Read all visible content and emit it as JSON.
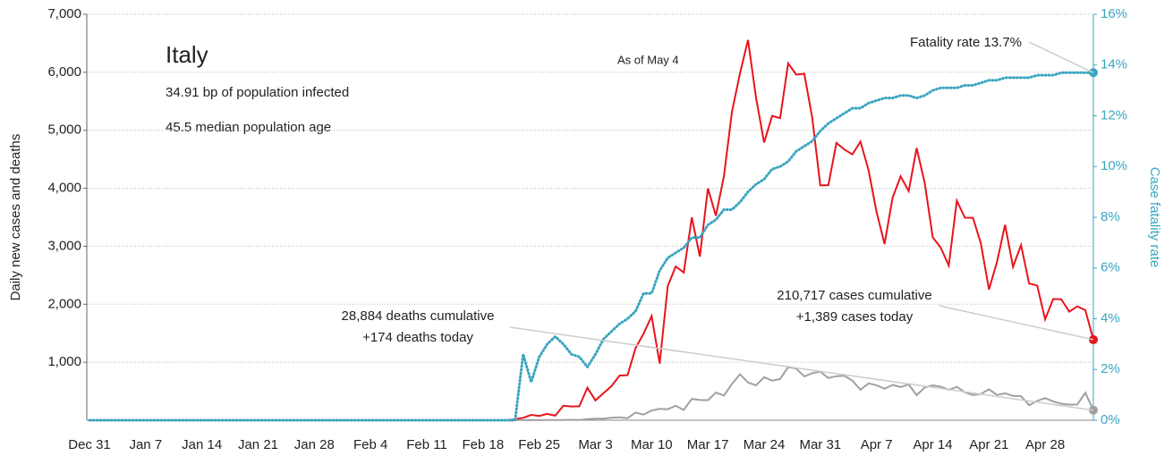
{
  "chart_data": {
    "type": "line",
    "title": "Italy",
    "annotations": [
      "34.91 bp of population infected",
      "45.5 median population age",
      "As of May 4",
      "Fatality rate 13.7%",
      "210,717 cases cumulative",
      "+1,389 cases today",
      "28,884 deaths cumulative",
      "+174 deaths today"
    ],
    "ylabel": "Daily new cases and deaths",
    "y2label": "Case fatality rate",
    "categories": [
      "Dec 31",
      null,
      null,
      null,
      null,
      null,
      null,
      "Jan 7",
      null,
      null,
      null,
      null,
      null,
      null,
      "Jan 14",
      null,
      null,
      null,
      null,
      null,
      null,
      "Jan 21",
      null,
      null,
      null,
      null,
      null,
      null,
      "Jan 28",
      null,
      null,
      null,
      null,
      null,
      null,
      "Feb 4",
      null,
      null,
      null,
      null,
      null,
      null,
      "Feb 11",
      null,
      null,
      null,
      null,
      null,
      null,
      "Feb 18",
      null,
      null,
      null,
      null,
      null,
      null,
      "Feb 25",
      null,
      null,
      null,
      null,
      null,
      null,
      "Mar 3",
      null,
      null,
      null,
      null,
      null,
      null,
      "Mar 10",
      null,
      null,
      null,
      null,
      null,
      null,
      "Mar 17",
      null,
      null,
      null,
      null,
      null,
      null,
      "Mar 24",
      null,
      null,
      null,
      null,
      null,
      null,
      "Mar 31",
      null,
      null,
      null,
      null,
      null,
      null,
      "Apr 7",
      null,
      null,
      null,
      null,
      null,
      null,
      "Apr 14",
      null,
      null,
      null,
      null,
      null,
      null,
      "Apr 21",
      null,
      null,
      null,
      null,
      null,
      null,
      "Apr 28",
      null,
      null,
      null,
      null,
      null,
      null
    ],
    "series": [
      {
        "name": "Daily new cases",
        "color": "#e8141c",
        "style": "solid",
        "values": [
          0,
          0,
          0,
          0,
          0,
          0,
          0,
          0,
          0,
          0,
          0,
          0,
          0,
          0,
          0,
          0,
          0,
          0,
          0,
          0,
          0,
          0,
          0,
          0,
          0,
          0,
          0,
          0,
          0,
          0,
          0,
          0,
          0,
          0,
          0,
          0,
          0,
          0,
          0,
          0,
          0,
          0,
          0,
          0,
          0,
          0,
          0,
          0,
          0,
          0,
          0,
          0,
          0,
          17,
          42,
          93,
          74,
          109,
          78,
          250,
          238,
          240,
          561,
          342,
          466,
          587,
          769,
          778,
          1247,
          1492,
          1797,
          977,
          2313,
          2651,
          2547,
          3497,
          2823,
          4000,
          3526,
          4207,
          5322,
          5986,
          6557,
          5560,
          4789,
          5249,
          5210,
          6153,
          5959,
          5974,
          5217,
          4050,
          4053,
          4782,
          4668,
          4585,
          4805,
          4316,
          3599,
          3039,
          3836,
          4204,
          3951,
          4694,
          4092,
          3153,
          2972,
          2667,
          3786,
          3493,
          3491,
          3047,
          2256,
          2729,
          3370,
          2646,
          3021,
          2357,
          2324,
          1739,
          2091,
          2086,
          1872,
          1965,
          1900,
          1389
        ]
      },
      {
        "name": "Daily new deaths",
        "color": "#a0a0a0",
        "style": "solid",
        "values": [
          0,
          0,
          0,
          0,
          0,
          0,
          0,
          0,
          0,
          0,
          0,
          0,
          0,
          0,
          0,
          0,
          0,
          0,
          0,
          0,
          0,
          0,
          0,
          0,
          0,
          0,
          0,
          0,
          0,
          0,
          0,
          0,
          0,
          0,
          0,
          0,
          0,
          0,
          0,
          0,
          0,
          0,
          0,
          0,
          0,
          0,
          0,
          0,
          0,
          0,
          0,
          0,
          0,
          1,
          1,
          4,
          1,
          5,
          5,
          4,
          8,
          5,
          18,
          27,
          28,
          41,
          49,
          36,
          133,
          97,
          168,
          196,
          189,
          250,
          175,
          368,
          349,
          345,
          475,
          427,
          627,
          793,
          651,
          601,
          743,
          683,
          712,
          919,
          889,
          756,
          812,
          837,
          727,
          760,
          766,
          681,
          525,
          636,
          604,
          542,
          610,
          570,
          619,
          431,
          566,
          602,
          578,
          525,
          575,
          482,
          433,
          454,
          534,
          437,
          464,
          420,
          415,
          260,
          333,
          382,
          323,
          285,
          269,
          271,
          474,
          174
        ]
      },
      {
        "name": "Case fatality rate",
        "color": "#3aa5c0",
        "style": "dotted",
        "axis": "y2",
        "values": [
          0,
          0,
          0,
          0,
          0,
          0,
          0,
          0,
          0,
          0,
          0,
          0,
          0,
          0,
          0,
          0,
          0,
          0,
          0,
          0,
          0,
          0,
          0,
          0,
          0,
          0,
          0,
          0,
          0,
          0,
          0,
          0,
          0,
          0,
          0,
          0,
          0,
          0,
          0,
          0,
          0,
          0,
          0,
          0,
          0,
          0,
          0,
          0,
          0,
          0,
          0,
          0,
          0,
          0,
          2.6,
          1.5,
          2.5,
          3.0,
          3.3,
          3.0,
          2.6,
          2.5,
          2.1,
          2.6,
          3.2,
          3.5,
          3.8,
          4.0,
          4.3,
          5.0,
          5.0,
          5.9,
          6.4,
          6.6,
          6.8,
          7.2,
          7.2,
          7.7,
          7.9,
          8.3,
          8.3,
          8.6,
          9.0,
          9.3,
          9.5,
          9.9,
          10.0,
          10.2,
          10.6,
          10.8,
          11.0,
          11.4,
          11.7,
          11.9,
          12.1,
          12.3,
          12.3,
          12.5,
          12.6,
          12.7,
          12.7,
          12.8,
          12.8,
          12.7,
          12.8,
          13.0,
          13.1,
          13.1,
          13.1,
          13.2,
          13.2,
          13.3,
          13.4,
          13.4,
          13.5,
          13.5,
          13.5,
          13.5,
          13.6,
          13.6,
          13.6,
          13.7,
          13.7,
          13.7,
          13.7,
          13.7
        ]
      }
    ],
    "ylim": [
      0,
      7000
    ],
    "yticks": [
      {
        "value": 1000,
        "label": "1,000"
      },
      {
        "value": 2000,
        "label": "2,000"
      },
      {
        "value": 3000,
        "label": "3,000"
      },
      {
        "value": 4000,
        "label": "4,000"
      },
      {
        "value": 5000,
        "label": "5,000"
      },
      {
        "value": 6000,
        "label": "6,000"
      },
      {
        "value": 7000,
        "label": "7,000"
      }
    ],
    "y2lim": [
      0,
      16
    ],
    "y2ticks": [
      {
        "value": 0,
        "label": "0%"
      },
      {
        "value": 2,
        "label": "2%"
      },
      {
        "value": 4,
        "label": "4%"
      },
      {
        "value": 6,
        "label": "6%"
      },
      {
        "value": 8,
        "label": "8%"
      },
      {
        "value": 10,
        "label": "10%"
      },
      {
        "value": 12,
        "label": "12%"
      },
      {
        "value": 14,
        "label": "14%"
      },
      {
        "value": 16,
        "label": "16%"
      }
    ],
    "grid": true
  }
}
